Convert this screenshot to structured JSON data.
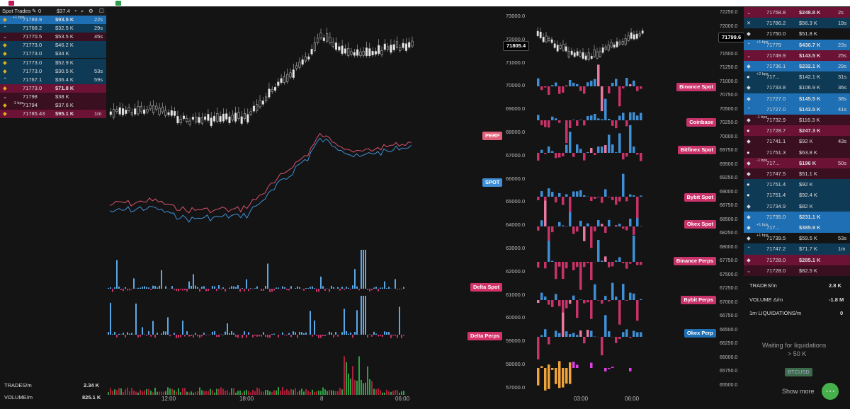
{
  "left_trades": {
    "title": "Spot Trades",
    "header_count": "0",
    "header_value": "$37.4",
    "rows": [
      {
        "icon": "binance",
        "bps": "+1 bps",
        "price": "71789.9",
        "amount": "$93.5 K",
        "age": "22s",
        "side": "buy",
        "strong": true
      },
      {
        "icon": "up",
        "bps": "",
        "price": "71768.2",
        "amount": "$32.5 K",
        "age": "29s",
        "side": "buy"
      },
      {
        "icon": "down",
        "bps": "",
        "price": "71770.5",
        "amount": "$53.5 K",
        "age": "45s",
        "side": "sell"
      },
      {
        "icon": "binance",
        "bps": "",
        "price": "71773.0",
        "amount": "$46.2 K",
        "age": "",
        "side": "buy"
      },
      {
        "icon": "binance",
        "bps": "",
        "price": "71773.0",
        "amount": "$34 K",
        "age": "",
        "side": "buy"
      },
      {
        "icon": "binance",
        "bps": "",
        "price": "71773.0",
        "amount": "$52.9 K",
        "age": "",
        "side": "buy"
      },
      {
        "icon": "binance",
        "bps": "",
        "price": "71773.0",
        "amount": "$30.5 K",
        "age": "53s",
        "side": "buy"
      },
      {
        "icon": "up",
        "bps": "",
        "price": "71767.1",
        "amount": "$36.4 K",
        "age": "59s",
        "side": "buy"
      },
      {
        "icon": "binance",
        "bps": "",
        "price": "71773.0",
        "amount": "$71.8 K",
        "age": "",
        "side": "sell",
        "strong": true
      },
      {
        "icon": "down",
        "bps": "",
        "price": "71798",
        "amount": "$38 K",
        "age": "",
        "side": "sell"
      },
      {
        "icon": "binance",
        "bps": "-1 bps",
        "price": "71794",
        "amount": "$37.6 K",
        "age": "",
        "side": "sell"
      },
      {
        "icon": "binance",
        "bps": "",
        "price": "71785.43",
        "amount": "$95.1 K",
        "age": "1m",
        "side": "sell",
        "strong": true
      }
    ]
  },
  "main": {
    "price_axis": [
      "73000.0",
      "72000.0",
      "71000.0",
      "70000.0",
      "69000.0",
      "68000.0",
      "67000.0",
      "66000.0",
      "65000.0",
      "64000.0",
      "63000.0",
      "62000.0",
      "61000.0",
      "60000.0",
      "59000.0",
      "58000.0",
      "57000.0"
    ],
    "current_price": "71805.4",
    "time_axis": [
      "12:00",
      "18:00",
      "8",
      "06:00"
    ],
    "perp_label": "PERP",
    "spot_label": "SPOT",
    "delta_spot_label": "Delta Spot",
    "delta_perps_label": "Delta Perps",
    "stats": [
      {
        "label": "TRADES/m",
        "value": "2.34 K"
      },
      {
        "label": "VOLUME/m",
        "value": "825.1 K"
      }
    ]
  },
  "mid": {
    "labels": [
      "Binance Spot",
      "Coinbase",
      "Bitfinex Spot",
      "Bybit Spot",
      "Okex Spot",
      "Binance Perps",
      "Bybit Perps",
      "Okex Perp"
    ],
    "time_axis": [
      "03:00",
      "06:00"
    ]
  },
  "right_axis": {
    "ticks": [
      "72250.0",
      "72000.0",
      "71750.0",
      "71500.0",
      "71250.0",
      "71000.0",
      "70750.0",
      "70500.0",
      "70250.0",
      "70000.0",
      "69750.0",
      "69500.0",
      "69250.0",
      "69000.0",
      "68750.0",
      "68500.0",
      "68250.0",
      "68000.0",
      "67750.0",
      "67500.0",
      "67250.0",
      "67000.0",
      "66750.0",
      "66500.0",
      "66250.0",
      "66000.0",
      "65750.0",
      "65500.0"
    ],
    "current_price": "71799.6"
  },
  "right_trades": {
    "rows": [
      {
        "icon": "down",
        "bps": "",
        "price": "71758.8",
        "amount": "$248.8 K",
        "age": "2s",
        "side": "sell",
        "strong": true
      },
      {
        "icon": "x",
        "bps": "",
        "price": "71786.2",
        "amount": "$56.3 K",
        "age": "19s",
        "side": "buy"
      },
      {
        "icon": "diamond",
        "bps": "",
        "price": "71750.0",
        "amount": "$51.8 K",
        "age": "",
        "side": "neutral"
      },
      {
        "icon": "up",
        "bps": "+1 bps",
        "price": "71779",
        "amount": "$430.7 K",
        "age": "23s",
        "side": "buy",
        "strong": true
      },
      {
        "icon": "down",
        "bps": "",
        "price": "71749.9",
        "amount": "$143.5 K",
        "age": "25s",
        "side": "sell",
        "strong": true
      },
      {
        "icon": "diamond",
        "bps": "",
        "price": "71736.1",
        "amount": "$232.1 K",
        "age": "29s",
        "side": "buy",
        "strong": true
      },
      {
        "icon": "coin",
        "bps": "+2 bps",
        "price": "717...",
        "amount": "$142.1 K",
        "age": "31s",
        "side": "buy"
      },
      {
        "icon": "diamond",
        "bps": "",
        "price": "71733.8",
        "amount": "$106.9 K",
        "age": "36s",
        "side": "buy"
      },
      {
        "icon": "diamond",
        "bps": "",
        "price": "71727.0",
        "amount": "$145.5 K",
        "age": "38s",
        "side": "buy",
        "strong": true
      },
      {
        "icon": "up",
        "bps": "",
        "price": "71727.0",
        "amount": "$143.5 K",
        "age": "41s",
        "side": "buy",
        "strong": true
      },
      {
        "icon": "diamond",
        "bps": "-1 bps",
        "price": "71732.9",
        "amount": "$116.3 K",
        "age": "",
        "side": "sell"
      },
      {
        "icon": "coin",
        "bps": "",
        "price": "71728.7",
        "amount": "$247.3 K",
        "age": "",
        "side": "sell",
        "strong": true
      },
      {
        "icon": "diamond",
        "bps": "",
        "price": "71741.1",
        "amount": "$92 K",
        "age": "43s",
        "side": "sell"
      },
      {
        "icon": "coin",
        "bps": "",
        "price": "71751.3",
        "amount": "$63.8 K",
        "age": "",
        "side": "sell"
      },
      {
        "icon": "diamond",
        "bps": "-1 bps",
        "price": "717...",
        "amount": "$196 K",
        "age": "50s",
        "side": "sell",
        "strong": true
      },
      {
        "icon": "diamond",
        "bps": "",
        "price": "71747.5",
        "amount": "$51.1 K",
        "age": "",
        "side": "sell"
      },
      {
        "icon": "coin",
        "bps": "",
        "price": "71751.4",
        "amount": "$92 K",
        "age": "",
        "side": "buy"
      },
      {
        "icon": "coin",
        "bps": "",
        "price": "71751.4",
        "amount": "$92.4 K",
        "age": "",
        "side": "buy"
      },
      {
        "icon": "diamond",
        "bps": "",
        "price": "71734.9",
        "amount": "$82 K",
        "age": "",
        "side": "buy"
      },
      {
        "icon": "diamond",
        "bps": "",
        "price": "71735.0",
        "amount": "$231.1 K",
        "age": "",
        "side": "buy",
        "strong": true
      },
      {
        "icon": "diamond",
        "bps": "+1 bps",
        "price": "717...",
        "amount": "$385.9 K",
        "age": "",
        "side": "buy",
        "strong": true
      },
      {
        "icon": "diamond",
        "bps": "+1 bps",
        "price": "71739.5",
        "amount": "$59.5 K",
        "age": "53s",
        "side": "neutral"
      },
      {
        "icon": "up",
        "bps": "",
        "price": "71747.2",
        "amount": "$71.7 K",
        "age": "1m",
        "side": "buy"
      },
      {
        "icon": "diamond",
        "bps": "",
        "price": "71728.0",
        "amount": "$285.1 K",
        "age": "",
        "side": "sell",
        "strong": true
      },
      {
        "icon": "down",
        "bps": "",
        "price": "71728.0",
        "amount": "$82.5 K",
        "age": "",
        "side": "sell"
      }
    ],
    "stats": [
      {
        "label": "TRADES/m",
        "value": "2.8 K"
      },
      {
        "label": "VOLUME Δ/m",
        "value": "-1.8 M"
      },
      {
        "label": "1m LIQUIDATIONS/m",
        "value": "0"
      }
    ],
    "waiting": "Waiting for liquidations",
    "threshold": "> 50 K",
    "pair_button": "BTCUSD",
    "show_more": "Show more"
  },
  "colors": {
    "buy": "#0f3a55",
    "buy_strong": "#1e6fb3",
    "sell": "#3a0f1f",
    "sell_strong": "#6b1235",
    "accent_blue": "#3f8fd6",
    "accent_pink": "#d4336a",
    "neutral": "#141414"
  }
}
